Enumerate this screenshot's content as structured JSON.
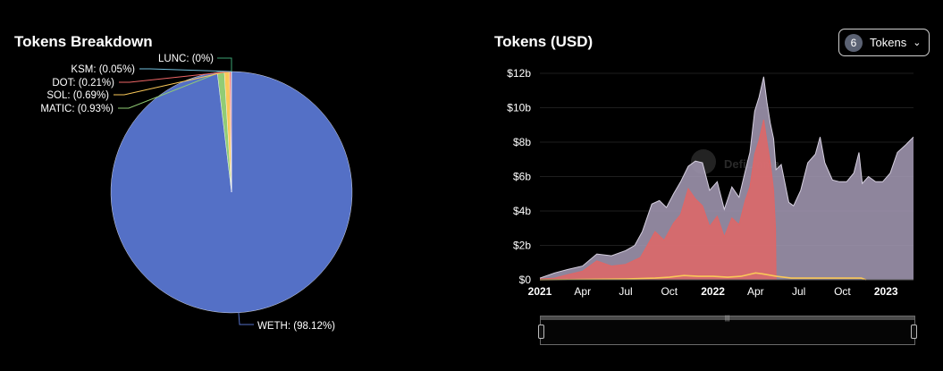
{
  "pie_panel": {
    "title": "Tokens Breakdown"
  },
  "area_panel": {
    "title": "Tokens (USD)",
    "token_select": {
      "count": "6",
      "label": "Tokens",
      "chevron": "chevron-down-icon"
    },
    "watermark": "DefiLlama"
  },
  "chart_data": [
    {
      "type": "pie",
      "title": "Tokens Breakdown",
      "slices": [
        {
          "name": "WETH",
          "label": "WETH: (98.12%)",
          "value": 98.12,
          "color": "#5470c6"
        },
        {
          "name": "MATIC",
          "label": "MATIC: (0.93%)",
          "value": 0.93,
          "color": "#91cc75"
        },
        {
          "name": "SOL",
          "label": "SOL: (0.69%)",
          "value": 0.69,
          "color": "#fac858"
        },
        {
          "name": "DOT",
          "label": "DOT: (0.21%)",
          "value": 0.21,
          "color": "#ee6666"
        },
        {
          "name": "KSM",
          "label": "KSM: (0.05%)",
          "value": 0.05,
          "color": "#73c0de"
        },
        {
          "name": "LUNC",
          "label": "LUNC: (0%)",
          "value": 0.0,
          "color": "#3ba272"
        }
      ]
    },
    {
      "type": "area",
      "title": "Tokens (USD)",
      "y_tick_labels": [
        "$0",
        "$2b",
        "$4b",
        "$6b",
        "$8b",
        "$10b",
        "$12b"
      ],
      "ylim": [
        0,
        12
      ],
      "y_unit": "billion USD",
      "xlim": [
        "2021-01-01",
        "2023-02-28"
      ],
      "x_ticks": [
        {
          "date": "2021-01-01",
          "label": "2021",
          "major": true
        },
        {
          "date": "2021-04-01",
          "label": "Apr",
          "major": false
        },
        {
          "date": "2021-07-01",
          "label": "Jul",
          "major": false
        },
        {
          "date": "2021-10-01",
          "label": "Oct",
          "major": false
        },
        {
          "date": "2022-01-01",
          "label": "2022",
          "major": true
        },
        {
          "date": "2022-04-01",
          "label": "Apr",
          "major": false
        },
        {
          "date": "2022-07-01",
          "label": "Jul",
          "major": false
        },
        {
          "date": "2022-10-01",
          "label": "Oct",
          "major": false
        },
        {
          "date": "2023-01-01",
          "label": "2023",
          "major": true
        }
      ],
      "series": [
        {
          "color": "#9d94ad",
          "points": [
            [
              "2021-01-01",
              0.1
            ],
            [
              "2021-02-01",
              0.4
            ],
            [
              "2021-03-01",
              0.6
            ],
            [
              "2021-04-01",
              0.8
            ],
            [
              "2021-05-01",
              1.5
            ],
            [
              "2021-06-01",
              1.4
            ],
            [
              "2021-07-01",
              1.7
            ],
            [
              "2021-07-20",
              2.0
            ],
            [
              "2021-08-05",
              2.8
            ],
            [
              "2021-08-25",
              4.4
            ],
            [
              "2021-09-10",
              4.6
            ],
            [
              "2021-09-25",
              4.2
            ],
            [
              "2021-10-10",
              5.0
            ],
            [
              "2021-10-25",
              5.7
            ],
            [
              "2021-11-10",
              6.6
            ],
            [
              "2021-11-25",
              6.9
            ],
            [
              "2021-12-10",
              6.8
            ],
            [
              "2021-12-25",
              5.2
            ],
            [
              "2022-01-10",
              5.7
            ],
            [
              "2022-01-25",
              4.1
            ],
            [
              "2022-02-10",
              5.4
            ],
            [
              "2022-02-25",
              4.8
            ],
            [
              "2022-03-10",
              6.3
            ],
            [
              "2022-03-20",
              7.4
            ],
            [
              "2022-03-30",
              9.8
            ],
            [
              "2022-04-08",
              10.6
            ],
            [
              "2022-04-18",
              11.8
            ],
            [
              "2022-04-25",
              10.3
            ],
            [
              "2022-05-02",
              9.1
            ],
            [
              "2022-05-09",
              8.2
            ],
            [
              "2022-05-14",
              6.4
            ],
            [
              "2022-05-25",
              6.7
            ],
            [
              "2022-06-10",
              4.5
            ],
            [
              "2022-06-20",
              4.3
            ],
            [
              "2022-07-05",
              5.2
            ],
            [
              "2022-07-20",
              6.8
            ],
            [
              "2022-08-05",
              7.3
            ],
            [
              "2022-08-15",
              8.3
            ],
            [
              "2022-08-25",
              6.8
            ],
            [
              "2022-09-10",
              5.8
            ],
            [
              "2022-09-25",
              5.7
            ],
            [
              "2022-10-10",
              5.7
            ],
            [
              "2022-10-25",
              6.2
            ],
            [
              "2022-11-05",
              7.4
            ],
            [
              "2022-11-12",
              5.6
            ],
            [
              "2022-11-25",
              6.0
            ],
            [
              "2022-12-10",
              5.7
            ],
            [
              "2022-12-25",
              5.7
            ],
            [
              "2023-01-10",
              6.2
            ],
            [
              "2023-01-25",
              7.4
            ],
            [
              "2023-02-10",
              7.8
            ],
            [
              "2023-02-28",
              8.3
            ]
          ]
        },
        {
          "color": "#e06666",
          "points": [
            [
              "2021-01-01",
              0.05
            ],
            [
              "2021-02-01",
              0.1
            ],
            [
              "2021-03-01",
              0.3
            ],
            [
              "2021-04-01",
              0.5
            ],
            [
              "2021-05-01",
              1.1
            ],
            [
              "2021-06-01",
              0.8
            ],
            [
              "2021-07-01",
              0.9
            ],
            [
              "2021-08-01",
              1.3
            ],
            [
              "2021-09-01",
              2.8
            ],
            [
              "2021-09-20",
              2.3
            ],
            [
              "2021-10-10",
              3.3
            ],
            [
              "2021-10-25",
              3.8
            ],
            [
              "2021-11-10",
              5.3
            ],
            [
              "2021-11-25",
              4.7
            ],
            [
              "2021-12-10",
              4.3
            ],
            [
              "2021-12-25",
              3.1
            ],
            [
              "2022-01-10",
              3.7
            ],
            [
              "2022-01-25",
              2.5
            ],
            [
              "2022-02-10",
              3.6
            ],
            [
              "2022-02-25",
              3.2
            ],
            [
              "2022-03-10",
              4.6
            ],
            [
              "2022-03-20",
              5.4
            ],
            [
              "2022-03-30",
              7.3
            ],
            [
              "2022-04-08",
              8.1
            ],
            [
              "2022-04-18",
              9.3
            ],
            [
              "2022-04-25",
              8.0
            ],
            [
              "2022-05-02",
              6.8
            ],
            [
              "2022-05-09",
              5.2
            ],
            [
              "2022-05-13",
              3.0
            ],
            [
              "2022-05-14",
              0.0
            ]
          ]
        },
        {
          "color": "#fac858",
          "points": [
            [
              "2021-01-01",
              0.0
            ],
            [
              "2021-04-01",
              0.02
            ],
            [
              "2021-07-01",
              0.05
            ],
            [
              "2021-09-01",
              0.1
            ],
            [
              "2021-10-01",
              0.15
            ],
            [
              "2021-11-01",
              0.25
            ],
            [
              "2021-12-01",
              0.2
            ],
            [
              "2022-01-01",
              0.2
            ],
            [
              "2022-02-01",
              0.15
            ],
            [
              "2022-03-01",
              0.2
            ],
            [
              "2022-04-01",
              0.4
            ],
            [
              "2022-04-15",
              0.35
            ],
            [
              "2022-05-15",
              0.2
            ],
            [
              "2022-06-15",
              0.1
            ],
            [
              "2022-08-01",
              0.1
            ],
            [
              "2022-10-01",
              0.1
            ],
            [
              "2022-11-10",
              0.1
            ],
            [
              "2022-11-20",
              0.0
            ]
          ]
        }
      ]
    }
  ]
}
